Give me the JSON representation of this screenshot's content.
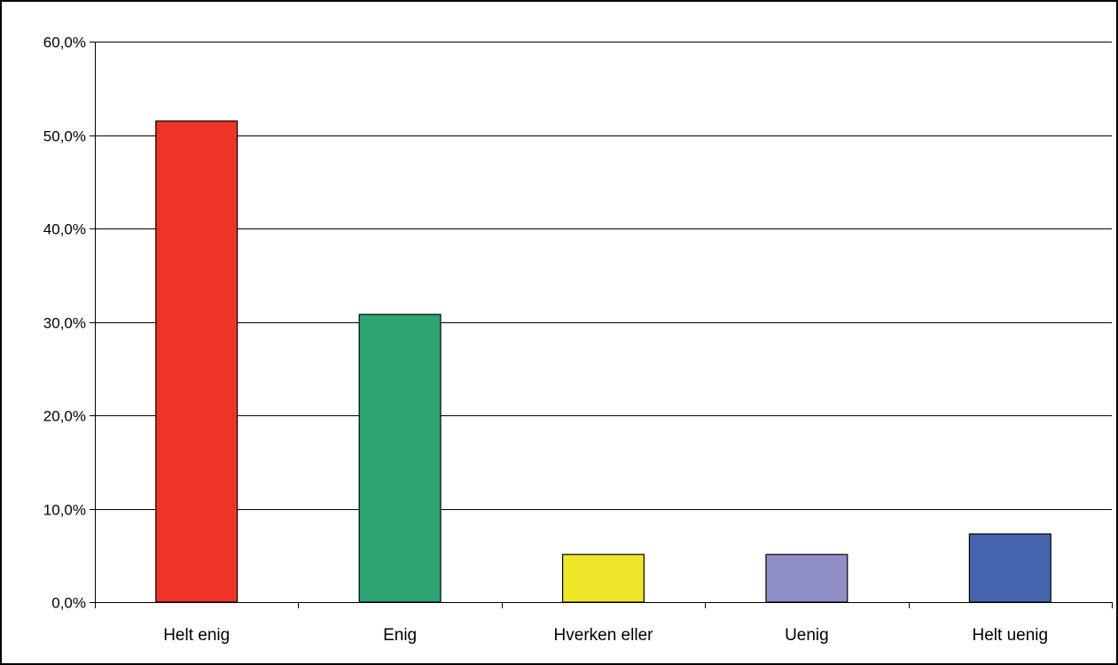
{
  "chart_data": {
    "type": "bar",
    "title": "",
    "xlabel": "",
    "ylabel": "",
    "categories": [
      "Helt enig",
      "Enig",
      "Hverken eller",
      "Uenig",
      "Helt uenig"
    ],
    "values": [
      51.5,
      30.8,
      5.1,
      5.1,
      7.3
    ],
    "colors": [
      "#ee3429",
      "#2ea574",
      "#efe82a",
      "#8f8ec6",
      "#4565ae"
    ],
    "ylim": [
      0,
      60
    ],
    "yticks": [
      0,
      10,
      20,
      30,
      40,
      50,
      60
    ],
    "ytick_labels": [
      "0,0%",
      "10,0%",
      "20,0%",
      "30,0%",
      "40,0%",
      "50,0%",
      "60,0%"
    ],
    "grid": true,
    "legend": "none"
  }
}
